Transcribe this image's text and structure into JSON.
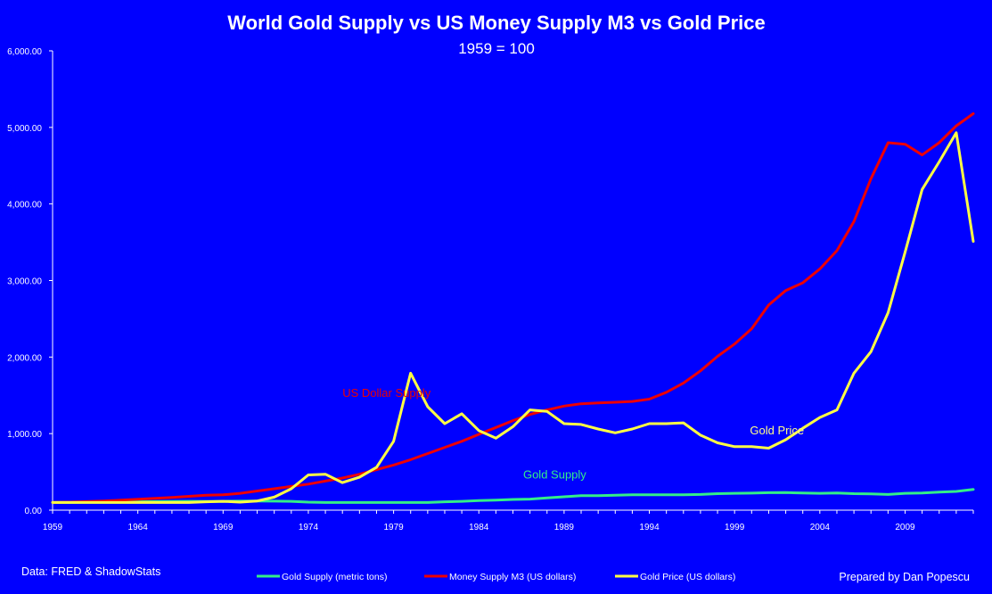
{
  "chart_data": {
    "type": "line",
    "title": "World Gold Supply vs US Money Supply M3 vs Gold Price",
    "subtitle": "1959 = 100",
    "xlim": [
      1959,
      2013
    ],
    "ylim": [
      0,
      6000
    ],
    "y_ticks": [
      "0.00",
      "1,000.00",
      "2,000.00",
      "3,000.00",
      "4,000.00",
      "5,000.00",
      "6,000.00"
    ],
    "x_ticks": [
      "1959",
      "1964",
      "1969",
      "1974",
      "1979",
      "1984",
      "1989",
      "1994",
      "1999",
      "2004",
      "2009"
    ],
    "grid": false,
    "legend_position": "bottom",
    "series": [
      {
        "name": "Gold Supply (metric tons)",
        "color": "#33EE88",
        "x": [
          1959,
          1960,
          1961,
          1962,
          1963,
          1964,
          1965,
          1966,
          1967,
          1968,
          1969,
          1970,
          1971,
          1972,
          1973,
          1974,
          1975,
          1976,
          1977,
          1978,
          1979,
          1980,
          1981,
          1982,
          1983,
          1984,
          1985,
          1986,
          1987,
          1988,
          1989,
          1990,
          1991,
          1992,
          1993,
          1994,
          1995,
          1996,
          1997,
          1998,
          1999,
          2000,
          2001,
          2002,
          2003,
          2004,
          2005,
          2006,
          2007,
          2008,
          2009,
          2010,
          2011,
          2012,
          2013
        ],
        "values": [
          100,
          102,
          105,
          107,
          108,
          110,
          112,
          113,
          115,
          114,
          115,
          118,
          120,
          118,
          115,
          105,
          100,
          100,
          100,
          100,
          100,
          100,
          100,
          110,
          115,
          125,
          130,
          140,
          145,
          160,
          175,
          190,
          190,
          195,
          200,
          200,
          200,
          200,
          205,
          215,
          220,
          222,
          228,
          230,
          225,
          220,
          225,
          215,
          212,
          205,
          220,
          225,
          235,
          245,
          270
        ]
      },
      {
        "name": "Money Supply M3 (US dollars)",
        "color": "#EE0000",
        "x": [
          1959,
          1960,
          1961,
          1962,
          1963,
          1964,
          1965,
          1966,
          1967,
          1968,
          1969,
          1970,
          1971,
          1972,
          1973,
          1974,
          1975,
          1976,
          1977,
          1978,
          1979,
          1980,
          1981,
          1982,
          1983,
          1984,
          1985,
          1986,
          1987,
          1988,
          1989,
          1990,
          1991,
          1992,
          1993,
          1994,
          1995,
          1996,
          1997,
          1998,
          1999,
          2000,
          2001,
          2002,
          2003,
          2004,
          2005,
          2006,
          2007,
          2008,
          2009,
          2010,
          2011,
          2012,
          2013
        ],
        "values": [
          100,
          105,
          112,
          120,
          130,
          142,
          155,
          165,
          180,
          195,
          200,
          220,
          250,
          280,
          310,
          340,
          380,
          420,
          470,
          530,
          590,
          660,
          740,
          820,
          900,
          990,
          1080,
          1170,
          1250,
          1310,
          1360,
          1390,
          1400,
          1410,
          1420,
          1450,
          1540,
          1660,
          1820,
          2010,
          2170,
          2370,
          2680,
          2870,
          2970,
          3150,
          3390,
          3770,
          4330,
          4800,
          4780,
          4640,
          4800,
          5020,
          5180
        ]
      },
      {
        "name": "Gold Price (US dollars)",
        "color": "#FFFF44",
        "x": [
          1959,
          1960,
          1961,
          1962,
          1963,
          1964,
          1965,
          1966,
          1967,
          1968,
          1969,
          1970,
          1971,
          1972,
          1973,
          1974,
          1975,
          1976,
          1977,
          1978,
          1979,
          1980,
          1981,
          1982,
          1983,
          1984,
          1985,
          1986,
          1987,
          1988,
          1989,
          1990,
          1991,
          1992,
          1993,
          1994,
          1995,
          1996,
          1997,
          1998,
          1999,
          2000,
          2001,
          2002,
          2003,
          2004,
          2005,
          2006,
          2007,
          2008,
          2009,
          2010,
          2011,
          2012,
          2013
        ],
        "values": [
          100,
          100,
          100,
          100,
          100,
          100,
          100,
          100,
          100,
          110,
          115,
          105,
          120,
          170,
          280,
          460,
          470,
          360,
          430,
          560,
          900,
          1790,
          1350,
          1130,
          1260,
          1040,
          940,
          1090,
          1310,
          1290,
          1130,
          1120,
          1060,
          1010,
          1060,
          1130,
          1130,
          1140,
          980,
          880,
          830,
          830,
          810,
          920,
          1070,
          1210,
          1310,
          1790,
          2070,
          2580,
          3370,
          4190,
          4550,
          4930,
          3510
        ]
      }
    ],
    "annotations": [
      {
        "text": "US Dollar Supply",
        "x": 1976,
        "y": 1480,
        "color": "#EE0000"
      },
      {
        "text": "Gold Price",
        "x": 1999.9,
        "y": 990,
        "color": "#FFFF88"
      },
      {
        "text": "Gold Supply",
        "x": 1986.6,
        "y": 415,
        "color": "#33EE88"
      }
    ]
  },
  "footer": {
    "source": "Data: FRED & ShadowStats",
    "credit": "Prepared by Dan Popescu"
  }
}
